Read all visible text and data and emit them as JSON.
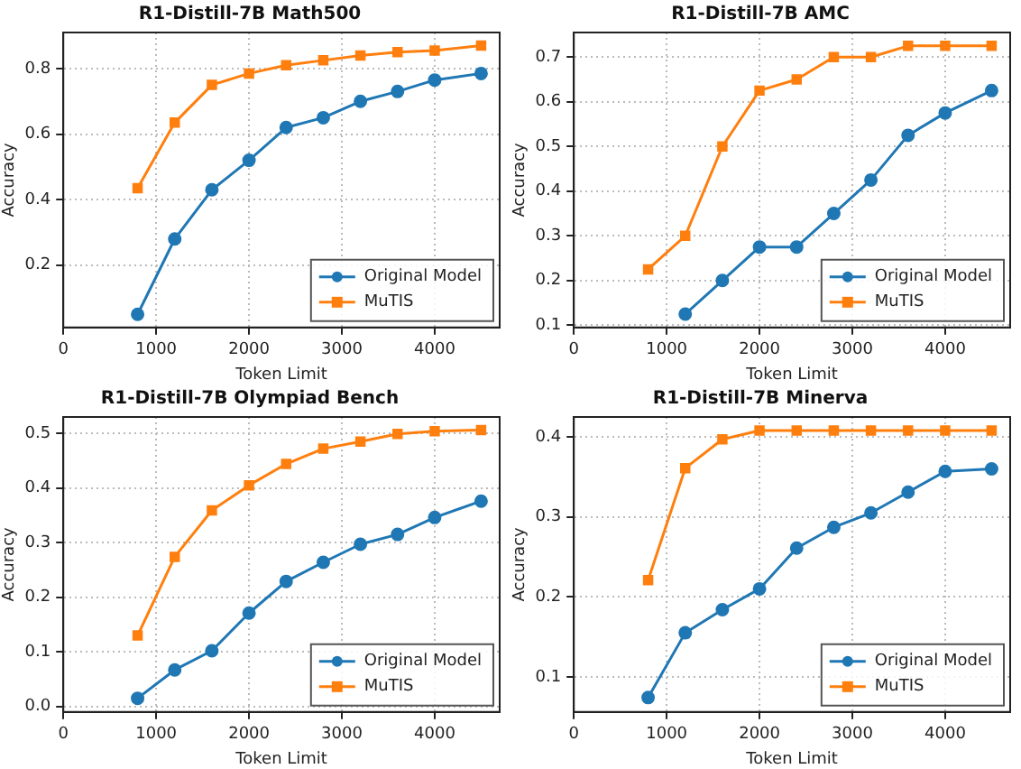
{
  "chart_data": [
    {
      "type": "line",
      "title": "R1-Distill-7B Math500",
      "xlabel": "Token Limit",
      "ylabel": "Accuracy",
      "x": [
        800,
        1200,
        1600,
        2000,
        2400,
        2800,
        3200,
        3600,
        4000,
        4500
      ],
      "xlim": [
        0,
        4700
      ],
      "xticks": [
        0,
        1000,
        2000,
        3000,
        4000
      ],
      "ylim": [
        0.01,
        0.91
      ],
      "yticks": [
        0.2,
        0.4,
        0.6,
        0.8
      ],
      "grid": true,
      "legend": "bottom right",
      "series": [
        {
          "name": "Original Model",
          "color": "#1f77b4",
          "marker": "circle",
          "values": [
            0.05,
            0.28,
            0.43,
            0.52,
            0.62,
            0.65,
            0.7,
            0.73,
            0.765,
            0.785
          ]
        },
        {
          "name": "MuTIS",
          "color": "#ff7f0e",
          "marker": "square",
          "values": [
            0.435,
            0.635,
            0.75,
            0.785,
            0.81,
            0.825,
            0.84,
            0.85,
            0.855,
            0.87
          ]
        }
      ]
    },
    {
      "type": "line",
      "title": "R1-Distill-7B AMC",
      "xlabel": "Token Limit",
      "ylabel": "Accuracy",
      "x": [
        800,
        1200,
        1600,
        2000,
        2400,
        2800,
        3200,
        3600,
        4000,
        4500
      ],
      "xlim": [
        0,
        4700
      ],
      "xticks": [
        0,
        1000,
        2000,
        3000,
        4000
      ],
      "ylim": [
        0.095,
        0.755
      ],
      "yticks": [
        0.1,
        0.2,
        0.3,
        0.4,
        0.5,
        0.6,
        0.7
      ],
      "grid": true,
      "legend": "bottom right",
      "series": [
        {
          "name": "Original Model",
          "color": "#1f77b4",
          "marker": "circle",
          "values": [
            null,
            0.125,
            0.2,
            0.275,
            0.275,
            0.35,
            0.425,
            0.525,
            0.575,
            0.625
          ]
        },
        {
          "name": "MuTIS",
          "color": "#ff7f0e",
          "marker": "square",
          "values": [
            0.225,
            0.3,
            0.5,
            0.625,
            0.65,
            0.7,
            0.7,
            0.725,
            0.725,
            0.725
          ]
        }
      ]
    },
    {
      "type": "line",
      "title": "R1-Distill-7B Olympiad Bench",
      "xlabel": "Token Limit",
      "ylabel": "Accuracy",
      "x": [
        800,
        1200,
        1600,
        2000,
        2400,
        2800,
        3200,
        3600,
        4000,
        4500
      ],
      "xlim": [
        0,
        4700
      ],
      "xticks": [
        0,
        1000,
        2000,
        3000,
        4000
      ],
      "ylim": [
        -0.01,
        0.53
      ],
      "yticks": [
        {
          "value": 0,
          "label": "0.0"
        },
        0.1,
        0.2,
        0.3,
        0.4,
        0.5
      ],
      "grid": true,
      "legend": "bottom right",
      "series": [
        {
          "name": "Original Model",
          "color": "#1f77b4",
          "marker": "circle",
          "values": [
            0.015,
            0.067,
            0.102,
            0.171,
            0.229,
            0.264,
            0.297,
            0.315,
            0.346,
            0.376
          ]
        },
        {
          "name": "MuTIS",
          "color": "#ff7f0e",
          "marker": "square",
          "values": [
            0.13,
            0.274,
            0.359,
            0.405,
            0.444,
            0.472,
            0.485,
            0.499,
            0.504,
            0.506
          ]
        }
      ]
    },
    {
      "type": "line",
      "title": "R1-Distill-7B Minerva",
      "xlabel": "Token Limit",
      "ylabel": "Accuracy",
      "x": [
        800,
        1200,
        1600,
        2000,
        2400,
        2800,
        3200,
        3600,
        4000,
        4500
      ],
      "xlim": [
        0,
        4700
      ],
      "xticks": [
        0,
        1000,
        2000,
        3000,
        4000
      ],
      "ylim": [
        0.056,
        0.425
      ],
      "yticks": [
        0.1,
        0.2,
        0.3,
        0.4
      ],
      "grid": true,
      "legend": "bottom right",
      "series": [
        {
          "name": "Original Model",
          "color": "#1f77b4",
          "marker": "circle",
          "values": [
            0.074,
            0.155,
            0.184,
            0.21,
            0.261,
            0.287,
            0.305,
            0.331,
            0.357,
            0.36
          ]
        },
        {
          "name": "MuTIS",
          "color": "#ff7f0e",
          "marker": "square",
          "values": [
            0.221,
            0.361,
            0.397,
            0.408,
            0.408,
            0.408,
            0.408,
            0.408,
            0.408,
            0.408
          ]
        }
      ]
    }
  ]
}
